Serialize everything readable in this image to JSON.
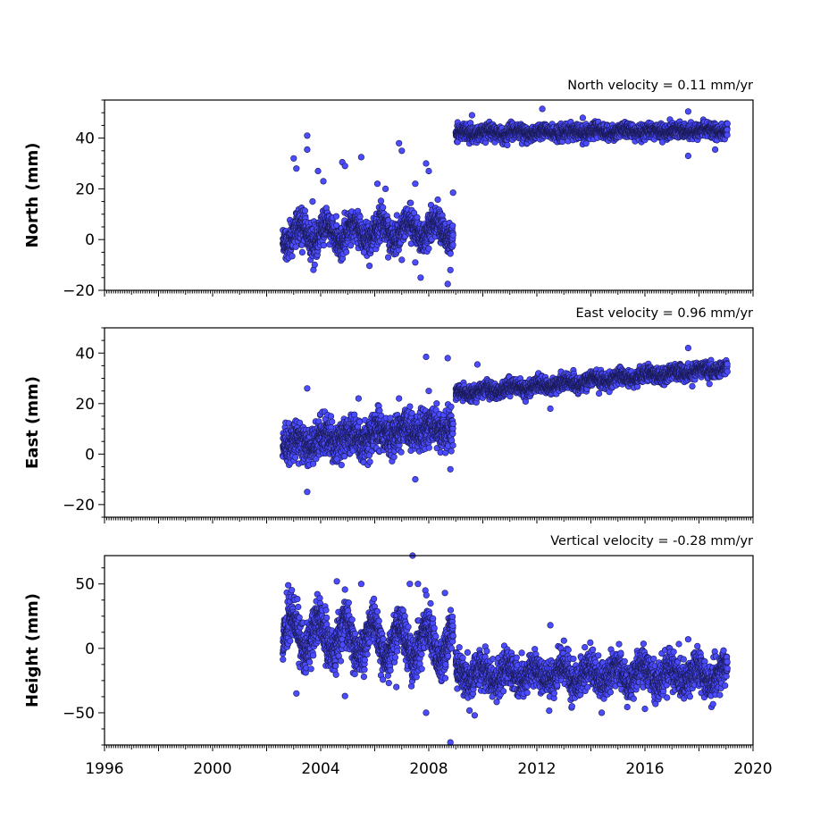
{
  "colors": {
    "marker_fill": "#4b4bff",
    "marker_edge": "#1a1a55",
    "axes": "#000000",
    "background": "#ffffff"
  },
  "chart_data": [
    {
      "type": "scatter",
      "title": "North velocity = 0.11 mm/yr",
      "xlabel": "",
      "ylabel": "North (mm)",
      "xlim": [
        1996,
        2020
      ],
      "ylim": [
        -20,
        55
      ],
      "yticks": [
        -20,
        0,
        20,
        40
      ],
      "grid": false,
      "segments": [
        {
          "x_start": 2002.6,
          "x_end": 2008.9,
          "trend_start": 2.0,
          "trend_end": 4.0,
          "scatter_sd": 3.0,
          "seasonal_amp": 3.5,
          "n_points": 1700
        },
        {
          "x_start": 2009.0,
          "x_end": 2019.05,
          "trend_start": 42.0,
          "trend_end": 43.1,
          "scatter_sd": 1.4,
          "seasonal_amp": 0.8,
          "n_points": 2400
        }
      ],
      "spikes": [
        {
          "x": 2003.0,
          "y": 32
        },
        {
          "x": 2003.1,
          "y": 28
        },
        {
          "x": 2003.5,
          "y": 41
        },
        {
          "x": 2003.5,
          "y": 35.5
        },
        {
          "x": 2003.9,
          "y": 27
        },
        {
          "x": 2004.1,
          "y": 23
        },
        {
          "x": 2004.8,
          "y": 30.5
        },
        {
          "x": 2004.9,
          "y": 29
        },
        {
          "x": 2005.5,
          "y": 32.5
        },
        {
          "x": 2006.1,
          "y": 22
        },
        {
          "x": 2006.9,
          "y": 38
        },
        {
          "x": 2007.0,
          "y": 35
        },
        {
          "x": 2007.5,
          "y": 22
        },
        {
          "x": 2007.9,
          "y": 30
        },
        {
          "x": 2008.0,
          "y": 27
        },
        {
          "x": 2008.9,
          "y": 18.5
        },
        {
          "x": 2003.7,
          "y": 15
        },
        {
          "x": 2006.4,
          "y": 20
        },
        {
          "x": 2007.0,
          "y": -8
        },
        {
          "x": 2007.5,
          "y": -9
        },
        {
          "x": 2007.7,
          "y": -15
        },
        {
          "x": 2008.7,
          "y": -17.5
        },
        {
          "x": 2008.8,
          "y": -12
        },
        {
          "x": 2006.5,
          "y": -7
        },
        {
          "x": 2005.6,
          "y": -5
        },
        {
          "x": 2012.2,
          "y": 51.5
        },
        {
          "x": 2009.6,
          "y": 49
        },
        {
          "x": 2017.6,
          "y": 50.5
        },
        {
          "x": 2017.6,
          "y": 33
        },
        {
          "x": 2018.6,
          "y": 35.5
        },
        {
          "x": 2013.7,
          "y": 48
        }
      ]
    },
    {
      "type": "scatter",
      "title": "East velocity = 0.96 mm/yr",
      "xlabel": "",
      "ylabel": "East (mm)",
      "xlim": [
        1996,
        2020
      ],
      "ylim": [
        -25,
        50
      ],
      "yticks": [
        -20,
        0,
        20,
        40
      ],
      "grid": false,
      "segments": [
        {
          "x_start": 2002.6,
          "x_end": 2008.9,
          "trend_start": 4.0,
          "trend_end": 11.0,
          "scatter_sd": 3.4,
          "seasonal_amp": 2.0,
          "n_points": 1700
        },
        {
          "x_start": 2009.0,
          "x_end": 2019.05,
          "trend_start": 24.0,
          "trend_end": 34.0,
          "scatter_sd": 1.5,
          "seasonal_amp": 1.0,
          "n_points": 2400
        }
      ],
      "spikes": [
        {
          "x": 2003.5,
          "y": 26
        },
        {
          "x": 2003.5,
          "y": -15
        },
        {
          "x": 2007.9,
          "y": 38.5
        },
        {
          "x": 2008.7,
          "y": 38
        },
        {
          "x": 2007.5,
          "y": -10
        },
        {
          "x": 2008.8,
          "y": -6
        },
        {
          "x": 2008.0,
          "y": 25
        },
        {
          "x": 2005.4,
          "y": 22
        },
        {
          "x": 2006.9,
          "y": 22
        },
        {
          "x": 2017.6,
          "y": 42
        },
        {
          "x": 2009.8,
          "y": 35.5
        },
        {
          "x": 2012.5,
          "y": 18
        },
        {
          "x": 2014.3,
          "y": 24
        },
        {
          "x": 2004.6,
          "y": -2
        },
        {
          "x": 2005.8,
          "y": -0.5
        }
      ]
    },
    {
      "type": "scatter",
      "title": "Vertical velocity = -0.28 mm/yr",
      "xlabel": "",
      "ylabel": "Height (mm)",
      "xlim": [
        1996,
        2020
      ],
      "ylim": [
        -75,
        72
      ],
      "yticks": [
        -50,
        0,
        50
      ],
      "xticks": [
        1996,
        2000,
        2004,
        2008,
        2012,
        2016,
        2020
      ],
      "grid": false,
      "segments": [
        {
          "x_start": 2002.6,
          "x_end": 2008.9,
          "trend_start": 12.0,
          "trend_end": 2.0,
          "scatter_sd": 8.0,
          "seasonal_amp": 13.0,
          "n_points": 1700
        },
        {
          "x_start": 2009.0,
          "x_end": 2019.05,
          "trend_start": -20.0,
          "trend_end": -20.5,
          "scatter_sd": 6.5,
          "seasonal_amp": 6.0,
          "n_points": 2400
        }
      ],
      "spikes": [
        {
          "x": 2007.4,
          "y": 72
        },
        {
          "x": 2002.8,
          "y": 49
        },
        {
          "x": 2004.6,
          "y": 52
        },
        {
          "x": 2005.5,
          "y": 50
        },
        {
          "x": 2007.3,
          "y": 50
        },
        {
          "x": 2007.6,
          "y": 50
        },
        {
          "x": 2008.6,
          "y": 43
        },
        {
          "x": 2012.5,
          "y": 18
        },
        {
          "x": 2013.0,
          "y": 6
        },
        {
          "x": 2017.6,
          "y": 7
        },
        {
          "x": 2008.8,
          "y": -73
        },
        {
          "x": 2007.9,
          "y": -50
        },
        {
          "x": 2009.7,
          "y": -52
        },
        {
          "x": 2013.3,
          "y": -45
        },
        {
          "x": 2014.4,
          "y": -50
        },
        {
          "x": 2016.0,
          "y": -47
        },
        {
          "x": 2003.1,
          "y": -35
        },
        {
          "x": 2004.9,
          "y": -37
        },
        {
          "x": 2006.8,
          "y": -30
        }
      ]
    }
  ]
}
